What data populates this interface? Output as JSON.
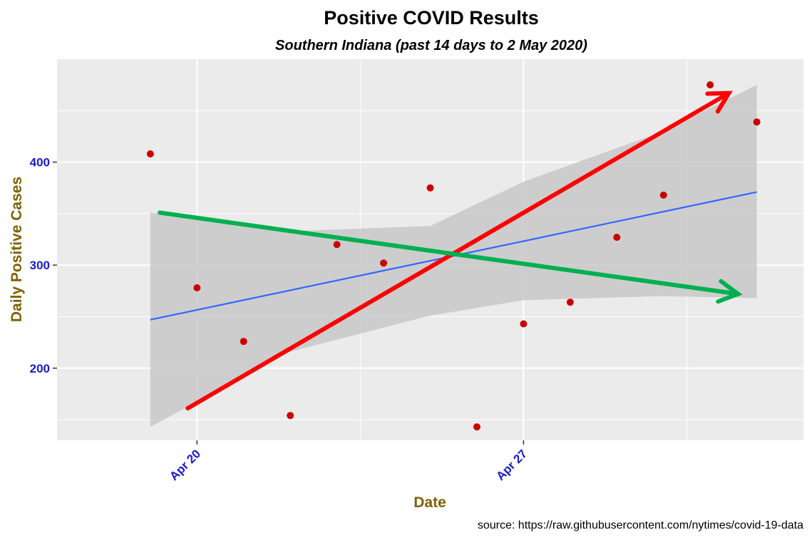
{
  "chart_data": {
    "type": "scatter",
    "title": "Positive COVID Results",
    "subtitle": "Southern Indiana (past 14 days to 2 May 2020)",
    "xlabel": "Date",
    "ylabel": "Daily Positive Cases",
    "caption": "source: https://raw.githubusercontent.com/nytimes/covid-19-data",
    "x_ticks": [
      {
        "date": "2020-04-20",
        "label": "Apr 20"
      },
      {
        "date": "2020-04-27",
        "label": "Apr 27"
      }
    ],
    "y_ticks": [
      {
        "value": 200,
        "label": "200"
      },
      {
        "value": 300,
        "label": "300"
      },
      {
        "value": 400,
        "label": "400"
      }
    ],
    "xlim": [
      "2020-04-17",
      "2020-05-03"
    ],
    "ylim": [
      130,
      500
    ],
    "grid": true,
    "points": [
      {
        "date": "2020-04-19",
        "value": 408
      },
      {
        "date": "2020-04-20",
        "value": 278
      },
      {
        "date": "2020-04-21",
        "value": 226
      },
      {
        "date": "2020-04-22",
        "value": 154
      },
      {
        "date": "2020-04-23",
        "value": 320
      },
      {
        "date": "2020-04-24",
        "value": 302
      },
      {
        "date": "2020-04-25",
        "value": 375
      },
      {
        "date": "2020-04-26",
        "value": 143
      },
      {
        "date": "2020-04-27",
        "value": 243
      },
      {
        "date": "2020-04-28",
        "value": 264
      },
      {
        "date": "2020-04-29",
        "value": 327
      },
      {
        "date": "2020-04-30",
        "value": 368
      },
      {
        "date": "2020-05-01",
        "value": 475
      },
      {
        "date": "2020-05-02",
        "value": 439
      }
    ],
    "trend_line": {
      "start": {
        "date": "2020-04-19",
        "value": 247
      },
      "end": {
        "date": "2020-05-02",
        "value": 371
      }
    },
    "confidence_band": [
      {
        "date": "2020-04-19",
        "lower": 143,
        "upper": 351
      },
      {
        "date": "2020-04-22",
        "lower": 216,
        "upper": 333
      },
      {
        "date": "2020-04-25",
        "lower": 251,
        "upper": 338
      },
      {
        "date": "2020-04-27",
        "lower": 266,
        "upper": 381
      },
      {
        "date": "2020-04-30",
        "lower": 270,
        "upper": 430
      },
      {
        "date": "2020-05-02",
        "lower": 268,
        "upper": 475
      }
    ],
    "annotations": [
      {
        "kind": "arrow",
        "color": "#ff0000",
        "start": {
          "date": "2020-04-19.8",
          "value": 161
        },
        "end": {
          "date": "2020-05-01.4",
          "value": 467
        }
      },
      {
        "kind": "arrow",
        "color": "#00b050",
        "start": {
          "date": "2020-04-19.2",
          "value": 351
        },
        "end": {
          "date": "2020-05-01.6",
          "value": 272
        }
      }
    ],
    "colors": {
      "panel": "#ebebeb",
      "grid": "#ffffff",
      "points": "#cc0000",
      "trend": "#3366ff",
      "band": "#c8c8c8",
      "tick_text": "#1a1acd",
      "axis_title": "#7f6000"
    }
  }
}
